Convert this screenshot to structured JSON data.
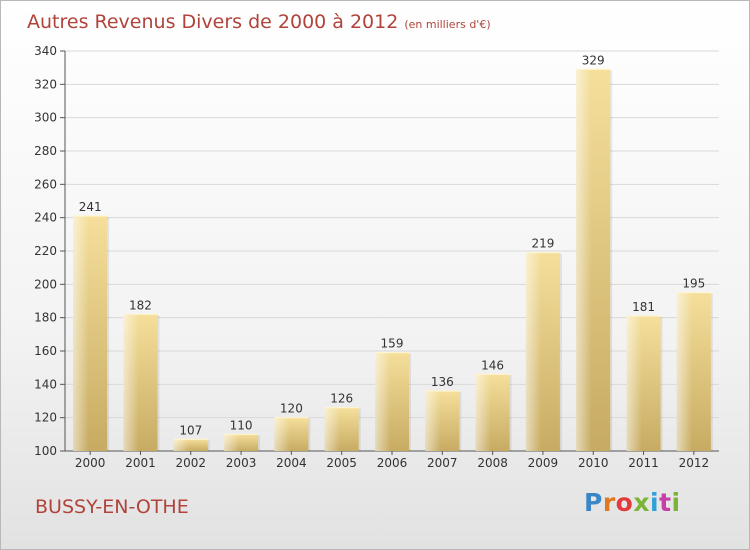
{
  "header": {
    "title": "Autres Revenus Divers de 2000 à 2012",
    "unit": "(en milliers d'€)"
  },
  "footer": {
    "place": "BUSSY-EN-OTHE",
    "logo": "Proxiti"
  },
  "colors": {
    "title": "#b0433a",
    "bar_light": "#f3dc96",
    "bar_dark": "#c4a85e",
    "grid": "#d9d9d9"
  },
  "chart_data": {
    "type": "bar",
    "categories": [
      "2000",
      "2001",
      "2002",
      "2003",
      "2004",
      "2005",
      "2006",
      "2007",
      "2008",
      "2009",
      "2010",
      "2011",
      "2012"
    ],
    "values": [
      241,
      182,
      107,
      110,
      120,
      126,
      159,
      136,
      146,
      219,
      329,
      181,
      195
    ],
    "ylim": [
      100,
      340
    ],
    "yticks": [
      100,
      120,
      140,
      160,
      180,
      200,
      220,
      240,
      260,
      280,
      300,
      320,
      340
    ],
    "grid": true,
    "data_labels": true
  }
}
